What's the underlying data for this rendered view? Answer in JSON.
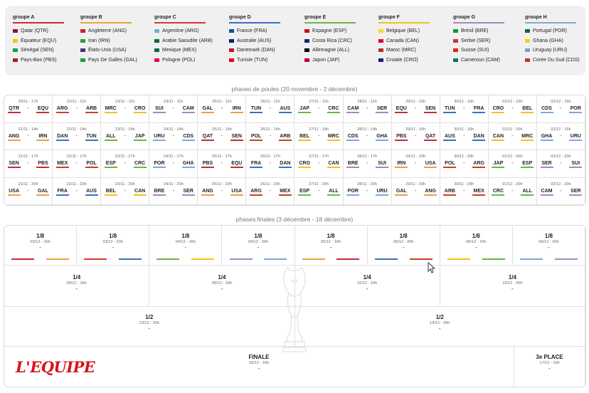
{
  "colors": {
    "groups": [
      "#cc2a36",
      "#e8a33c",
      "#d23b2e",
      "#3c6fc0",
      "#6bb44a",
      "#f2c21a",
      "#a487c4",
      "#7fa7d8"
    ]
  },
  "groups": [
    {
      "name": "groupe A",
      "teams": [
        "Qatar (QTR)",
        "Équateur (EQU)",
        "Sénégal (SEN)",
        "Pays-Bas (PBS)"
      ],
      "flags": [
        "qatar-flag-icon",
        "ecuador-flag-icon",
        "senegal-flag-icon",
        "netherlands-flag-icon"
      ],
      "flag_colors": [
        "#8a1538",
        "#f5c400",
        "#13a049",
        "#ae1c28"
      ]
    },
    {
      "name": "groupe B",
      "teams": [
        "Angleterre (ANG)",
        "Iran (IRN)",
        "États-Unis (USA)",
        "Pays De Galles (GAL)"
      ],
      "flags": [
        "england-flag-icon",
        "iran-flag-icon",
        "usa-flag-icon",
        "wales-flag-icon"
      ],
      "flag_colors": [
        "#cf1a2b",
        "#239f40",
        "#3c3b6e",
        "#1e9a3b"
      ]
    },
    {
      "name": "groupe C",
      "teams": [
        "Argentine (ARG)",
        "Arabie Saoudite (ARB)",
        "Mexique (MEX)",
        "Pologne (POL)"
      ],
      "flags": [
        "argentina-flag-icon",
        "saudi-arabia-flag-icon",
        "mexico-flag-icon",
        "poland-flag-icon"
      ],
      "flag_colors": [
        "#74acdf",
        "#006c35",
        "#006847",
        "#dc143c"
      ]
    },
    {
      "name": "groupe D",
      "teams": [
        "France (FRA)",
        "Australie (AUS)",
        "Danemark (DAN)",
        "Tunisie (TUN)"
      ],
      "flags": [
        "france-flag-icon",
        "australia-flag-icon",
        "denmark-flag-icon",
        "tunisia-flag-icon"
      ],
      "flag_colors": [
        "#0055a4",
        "#012169",
        "#c8102e",
        "#e70013"
      ]
    },
    {
      "name": "groupe E",
      "teams": [
        "Espagne (ESP)",
        "Costa Rica (CRC)",
        "Allemagne (ALL)",
        "Japon (JAP)"
      ],
      "flags": [
        "spain-flag-icon",
        "costa-rica-flag-icon",
        "germany-flag-icon",
        "japan-flag-icon"
      ],
      "flag_colors": [
        "#c60b1e",
        "#002b7f",
        "#000000",
        "#bc002d"
      ]
    },
    {
      "name": "groupe F",
      "teams": [
        "Belgique (BEL)",
        "Canada (CAN)",
        "Maroc (MRC)",
        "Croatie (CRO)"
      ],
      "flags": [
        "belgium-flag-icon",
        "canada-flag-icon",
        "morocco-flag-icon",
        "croatia-flag-icon"
      ],
      "flag_colors": [
        "#fdda24",
        "#d80621",
        "#c1272d",
        "#171796"
      ]
    },
    {
      "name": "groupe G",
      "teams": [
        "Brésil (BRE)",
        "Serbie (SER)",
        "Suisse (SUI)",
        "Cameroun (CAM)"
      ],
      "flags": [
        "brazil-flag-icon",
        "serbia-flag-icon",
        "switzerland-flag-icon",
        "cameroon-flag-icon"
      ],
      "flag_colors": [
        "#009c3b",
        "#c6363c",
        "#d52b1e",
        "#007a5e"
      ]
    },
    {
      "name": "groupe H",
      "teams": [
        "Portugal (POR)",
        "Ghana (GHA)",
        "Uruguay (URU)",
        "Corée Du Sud (CDS)"
      ],
      "flags": [
        "portugal-flag-icon",
        "ghana-flag-icon",
        "uruguay-flag-icon",
        "south-korea-flag-icon"
      ],
      "flag_colors": [
        "#046a38",
        "#fcd116",
        "#7b9fd3",
        "#cd2e3a"
      ]
    }
  ],
  "pool_title": "phases de poules (20 novembre - 2 décembre)",
  "pool_rows": [
    [
      {
        "date": "20/11 - 17h",
        "home": "QTR",
        "away": "EQU",
        "group": 0
      },
      {
        "date": "22/11 - 11h",
        "home": "ARG",
        "away": "ARB",
        "group": 2
      },
      {
        "date": "23/11 - 11h",
        "home": "MRC",
        "away": "CRO",
        "group": 5
      },
      {
        "date": "24/11 - 11h",
        "home": "SUI",
        "away": "CAM",
        "group": 6
      },
      {
        "date": "25/11 - 11h",
        "home": "GAL",
        "away": "IRN",
        "group": 1
      },
      {
        "date": "26/11 - 11h",
        "home": "TUN",
        "away": "AUS",
        "group": 3
      },
      {
        "date": "27/11 - 11h",
        "home": "JAP",
        "away": "CRC",
        "group": 4
      },
      {
        "date": "28/11 - 11h",
        "home": "CAM",
        "away": "SER",
        "group": 6
      },
      {
        "date": "29/11 - 16h",
        "home": "EQU",
        "away": "SEN",
        "group": 0
      },
      {
        "date": "30/11 - 16h",
        "home": "TUN",
        "away": "FRA",
        "group": 3
      },
      {
        "date": "01/12 - 16h",
        "home": "CRO",
        "away": "BEL",
        "group": 5
      },
      {
        "date": "02/12 - 16h",
        "home": "CDS",
        "away": "POR",
        "group": 7
      }
    ],
    [
      {
        "date": "21/11 - 14h",
        "home": "ANG",
        "away": "IRN",
        "group": 1
      },
      {
        "date": "22/11 - 14h",
        "home": "DAN",
        "away": "TUN",
        "group": 3
      },
      {
        "date": "23/11 - 14h",
        "home": "ALL",
        "away": "JAP",
        "group": 4
      },
      {
        "date": "24/11 - 14h",
        "home": "URU",
        "away": "CDS",
        "group": 7
      },
      {
        "date": "25/11 - 14h",
        "home": "QAT",
        "away": "SEN",
        "group": 0
      },
      {
        "date": "26/11 - 14h",
        "home": "POL",
        "away": "ARB",
        "group": 2
      },
      {
        "date": "27/11 - 14h",
        "home": "BEL",
        "away": "MRC",
        "group": 5
      },
      {
        "date": "28/11 - 14h",
        "home": "CDS",
        "away": "GHA",
        "group": 7
      },
      {
        "date": "29/11 - 16h",
        "home": "PBS",
        "away": "QAT",
        "group": 0
      },
      {
        "date": "30/11 - 16h",
        "home": "AUS",
        "away": "DAN",
        "group": 3
      },
      {
        "date": "01/12 - 16h",
        "home": "CAN",
        "away": "MRC",
        "group": 5
      },
      {
        "date": "02/12 - 16h",
        "home": "GHA",
        "away": "URU",
        "group": 7
      }
    ],
    [
      {
        "date": "21/11 - 17h",
        "home": "SEN",
        "away": "PBS",
        "group": 0
      },
      {
        "date": "22/11 - 17h",
        "home": "MEX",
        "away": "POL",
        "group": 2
      },
      {
        "date": "23/11 - 17h",
        "home": "ESP",
        "away": "CRC",
        "group": 4
      },
      {
        "date": "24/11 - 17h",
        "home": "POR",
        "away": "GHA",
        "group": 7
      },
      {
        "date": "25/11 - 17h",
        "home": "PBS",
        "away": "EQU",
        "group": 0
      },
      {
        "date": "26/11 - 17h",
        "home": "FRA",
        "away": "DAN",
        "group": 3
      },
      {
        "date": "27/11 - 17h",
        "home": "CRO",
        "away": "CAN",
        "group": 5
      },
      {
        "date": "28/11 - 17h",
        "home": "BRE",
        "away": "SUI",
        "group": 6
      },
      {
        "date": "29/11 - 20h",
        "home": "IRN",
        "away": "USA",
        "group": 1
      },
      {
        "date": "30/11 - 20h",
        "home": "POL",
        "away": "ARG",
        "group": 2
      },
      {
        "date": "01/12 - 20h",
        "home": "JAP",
        "away": "ESP",
        "group": 4
      },
      {
        "date": "02/12 - 20h",
        "home": "SER",
        "away": "SUI",
        "group": 6
      }
    ],
    [
      {
        "date": "21/11 - 20h",
        "home": "USA",
        "away": "GAL",
        "group": 1
      },
      {
        "date": "22/11 - 20h",
        "home": "FRA",
        "away": "AUS",
        "group": 3
      },
      {
        "date": "23/11 - 20h",
        "home": "BEL",
        "away": "CAN",
        "group": 5
      },
      {
        "date": "24/11 - 20h",
        "home": "BRE",
        "away": "SER",
        "group": 6
      },
      {
        "date": "25/11 - 20h",
        "home": "ANG",
        "away": "USA",
        "group": 1
      },
      {
        "date": "26/11 - 20h",
        "home": "ARG",
        "away": "MEX",
        "group": 2
      },
      {
        "date": "27/11 - 20h",
        "home": "ESP",
        "away": "ALL",
        "group": 4
      },
      {
        "date": "28/11 - 20h",
        "home": "POR",
        "away": "URU",
        "group": 7
      },
      {
        "date": "29/11 - 20h",
        "home": "GAL",
        "away": "ANG",
        "group": 1
      },
      {
        "date": "30/11 - 20h",
        "home": "ARB",
        "away": "MEX",
        "group": 2
      },
      {
        "date": "01/12 - 20h",
        "home": "CRC",
        "away": "ALL",
        "group": 4
      },
      {
        "date": "02/12 - 20h",
        "home": "CAM",
        "away": "SER",
        "group": 6
      }
    ]
  ],
  "finals_title": "phases finales (3 décembre - 18 décembre)",
  "ro16": [
    {
      "round": "1/8",
      "date": "03/12 - 16h",
      "score": "-",
      "groups": [
        0,
        1
      ]
    },
    {
      "round": "1/8",
      "date": "03/12 - 20h",
      "score": "-",
      "groups": [
        2,
        3
      ]
    },
    {
      "round": "1/8",
      "date": "04/12 - 16h",
      "score": "-",
      "groups": [
        4,
        5
      ]
    },
    {
      "round": "1/8",
      "date": "04/12 - 20h",
      "score": "-",
      "groups": [
        6,
        7
      ]
    },
    {
      "round": "1/8",
      "date": "05/12 - 16h",
      "score": "-",
      "groups": [
        1,
        0
      ]
    },
    {
      "round": "1/8",
      "date": "05/12 - 20h",
      "score": "-",
      "groups": [
        3,
        2
      ]
    },
    {
      "round": "1/8",
      "date": "06/12 - 16h",
      "score": "-",
      "groups": [
        5,
        4
      ]
    },
    {
      "round": "1/8",
      "date": "06/12 - 20h",
      "score": "-",
      "groups": [
        7,
        6
      ]
    }
  ],
  "qf": [
    {
      "round": "1/4",
      "date": "09/12 - 16h",
      "score": "-"
    },
    {
      "round": "1/4",
      "date": "09/12 - 20h",
      "score": "-"
    },
    {
      "round": "1/4",
      "date": "10/12 - 16h",
      "score": "-"
    },
    {
      "round": "1/4",
      "date": "10/12 - 20h",
      "score": "-"
    }
  ],
  "sf": [
    {
      "round": "1/2",
      "date": "13/12 - 20h",
      "score": "-"
    },
    {
      "round": "1/2",
      "date": "14/12 - 20h",
      "score": "-"
    }
  ],
  "final": {
    "round": "FINALE",
    "date": "18/12 - 16h",
    "score": "-"
  },
  "third": {
    "round": "3e PLACE",
    "date": "17/12 - 16h",
    "score": "-"
  },
  "brand": {
    "logo": "L'EQUIPE"
  }
}
